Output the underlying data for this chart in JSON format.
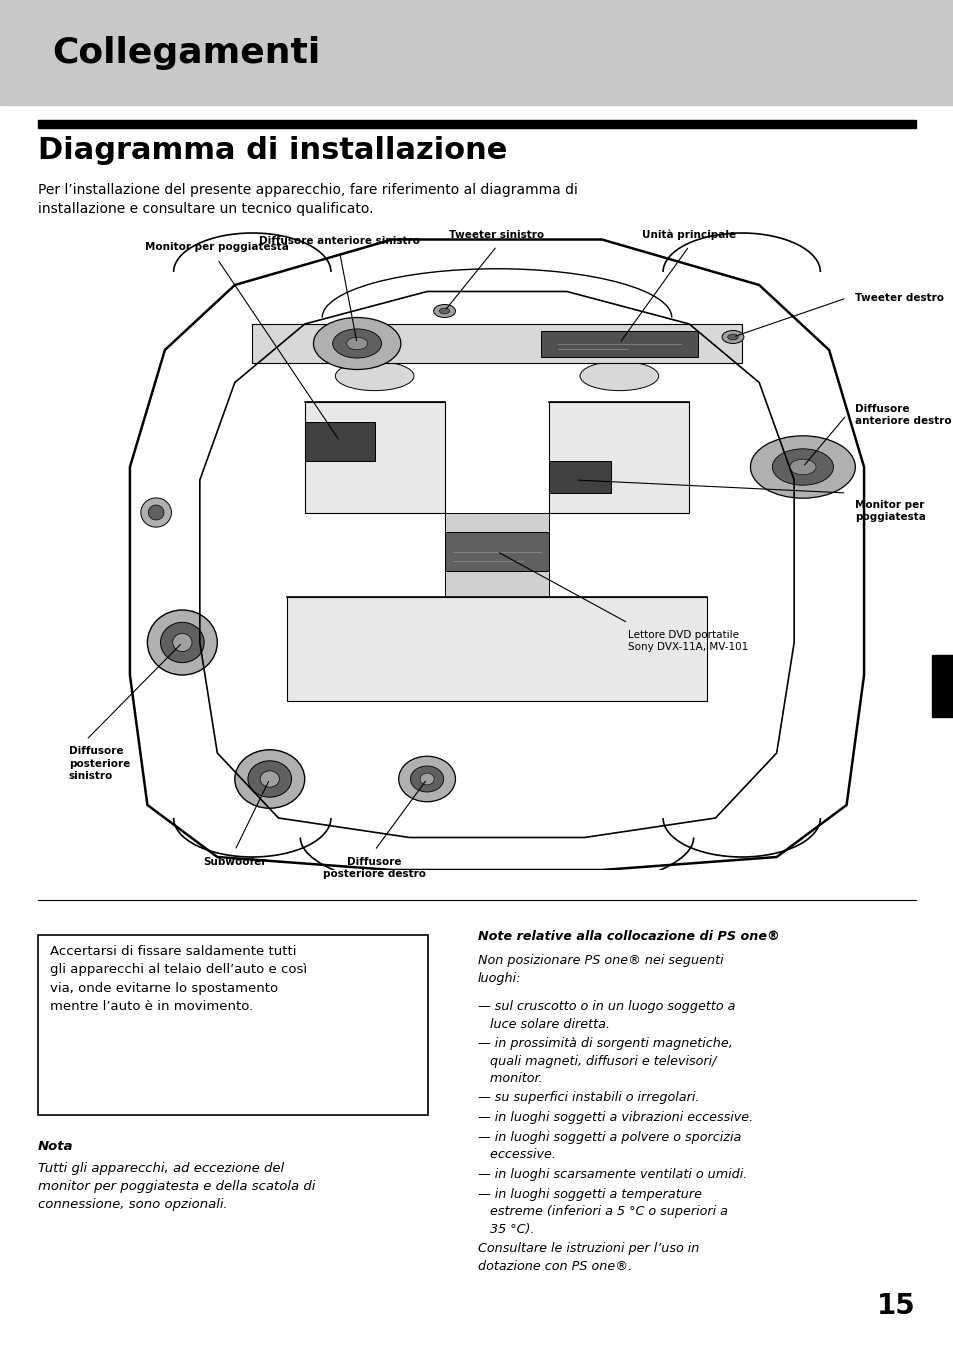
{
  "page_bg": "#ffffff",
  "header_bg": "#c8c8c8",
  "header_text": "Collegamenti",
  "header_text_color": "#000000",
  "section_title": "Diagramma di installazione",
  "intro_text": "Per l’installazione del presente apparecchio, fare riferimento al diagramma di\ninstallazione e consultare un tecnico qualificato.",
  "box_text": "Accertarsi di fissare saldamente tutti\ngli apparecchi al telaio dell’auto e così\nvia, onde evitarne lo spostamento\nmentre l’auto è in movimento.",
  "nota_title": "Nota",
  "nota_text": "Tutti gli apparecchi, ad eccezione del\nmonitor per poggiatesta e della scatola di\nconnessione, sono opzionali.",
  "note_title": "Note relative alla collocazione di PS one®",
  "note_intro": "Non posizionare PS one® nei seguenti\nluoghi:",
  "note_items": [
    "— sul cruscotto o in un luogo soggetto a\n   luce solare diretta.",
    "— in prossimità di sorgenti magnetiche,\n   quali magneti, diffusori e televisori/\n   monitor.",
    "— su superfici instabili o irregolari.",
    "— in luoghi soggetti a vibrazioni eccessive.",
    "— in luoghi soggetti a polvere o sporcizia\n   eccessive.",
    "— in luoghi scarsamente ventilati o umidi.",
    "— in luoghi soggetti a temperature\n   estreme (inferiori a 5 °C o superiori a\n   35 °C).",
    "Consultare le istruzioni per l’uso in\ndotazione con PS one®."
  ],
  "page_number": "15"
}
